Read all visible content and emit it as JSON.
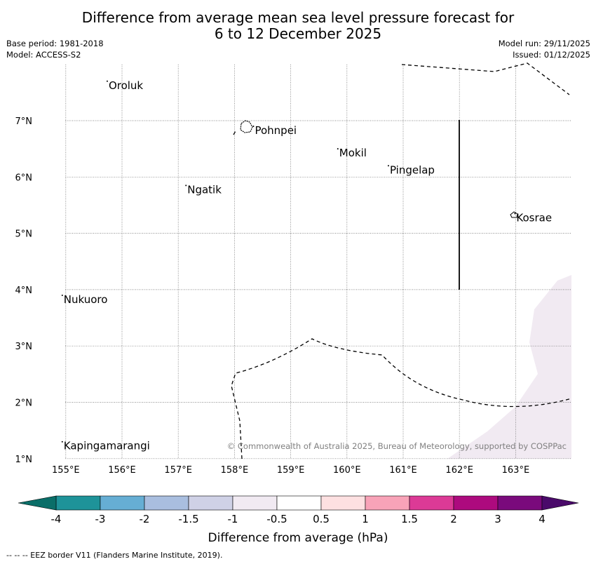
{
  "title": {
    "line1": "Difference from average mean sea level pressure forecast for",
    "line2": "6 to 12 December 2025"
  },
  "meta_left": {
    "base_period": "Base period: 1981-2018",
    "model": "Model: ACCESS-S2"
  },
  "meta_right": {
    "model_run": "Model run: 29/11/2025",
    "issued": "Issued: 01/12/2025"
  },
  "map": {
    "lon_range": [
      154.5,
      164.0
    ],
    "lat_range": [
      1.0,
      8.0
    ],
    "lon_ticks": [
      {
        "v": 155,
        "label": "155°E"
      },
      {
        "v": 156,
        "label": "156°E"
      },
      {
        "v": 157,
        "label": "157°E"
      },
      {
        "v": 158,
        "label": "158°E"
      },
      {
        "v": 159,
        "label": "159°E"
      },
      {
        "v": 160,
        "label": "160°E"
      },
      {
        "v": 161,
        "label": "161°E"
      },
      {
        "v": 162,
        "label": "162°E"
      },
      {
        "v": 163,
        "label": "163°E"
      }
    ],
    "lat_ticks": [
      {
        "v": 1,
        "label": "1°N"
      },
      {
        "v": 2,
        "label": "2°N"
      },
      {
        "v": 3,
        "label": "3°N"
      },
      {
        "v": 4,
        "label": "4°N"
      },
      {
        "v": 5,
        "label": "5°N"
      },
      {
        "v": 6,
        "label": "6°N"
      },
      {
        "v": 7,
        "label": "7°N"
      }
    ],
    "places": [
      {
        "name": "Oroluk",
        "lon": 155.75,
        "lat": 7.65
      },
      {
        "name": "Pohnpei",
        "lon": 158.35,
        "lat": 6.85
      },
      {
        "name": "Mokil",
        "lon": 159.85,
        "lat": 6.45
      },
      {
        "name": "Pingelap",
        "lon": 160.75,
        "lat": 6.15
      },
      {
        "name": "Ngatik",
        "lon": 157.15,
        "lat": 5.8
      },
      {
        "name": "Kosrae",
        "lon": 163.0,
        "lat": 5.3
      },
      {
        "name": "Nukuoro",
        "lon": 154.95,
        "lat": 3.85
      },
      {
        "name": "Kapingamarangi",
        "lon": 154.95,
        "lat": 1.25
      }
    ],
    "anomaly_shading": {
      "value_range": "-1 to -0.5",
      "color": "#f1eaf2"
    },
    "copyright": "© Commonwealth of Australia 2025, Bureau of Meteorology, supported by COSPPac"
  },
  "colorbar": {
    "label": "Difference from average (hPa)",
    "ticks": [
      "-4",
      "-3",
      "-2",
      "-1.5",
      "-1",
      "-0.5",
      "0.5",
      "1",
      "1.5",
      "2",
      "3",
      "4"
    ],
    "under_color": "#0a6e68",
    "over_color": "#4a0a6a",
    "colors": [
      "#1e9399",
      "#66aed4",
      "#a9bedf",
      "#cfd1e6",
      "#f1eaf2",
      "#ffffff",
      "#fde0e1",
      "#f8a3b8",
      "#dc3a96",
      "#ad0a7e",
      "#7a0a7c"
    ]
  },
  "footer": "--  --  -- EEZ border V11 (Flanders Marine Institute, 2019)."
}
